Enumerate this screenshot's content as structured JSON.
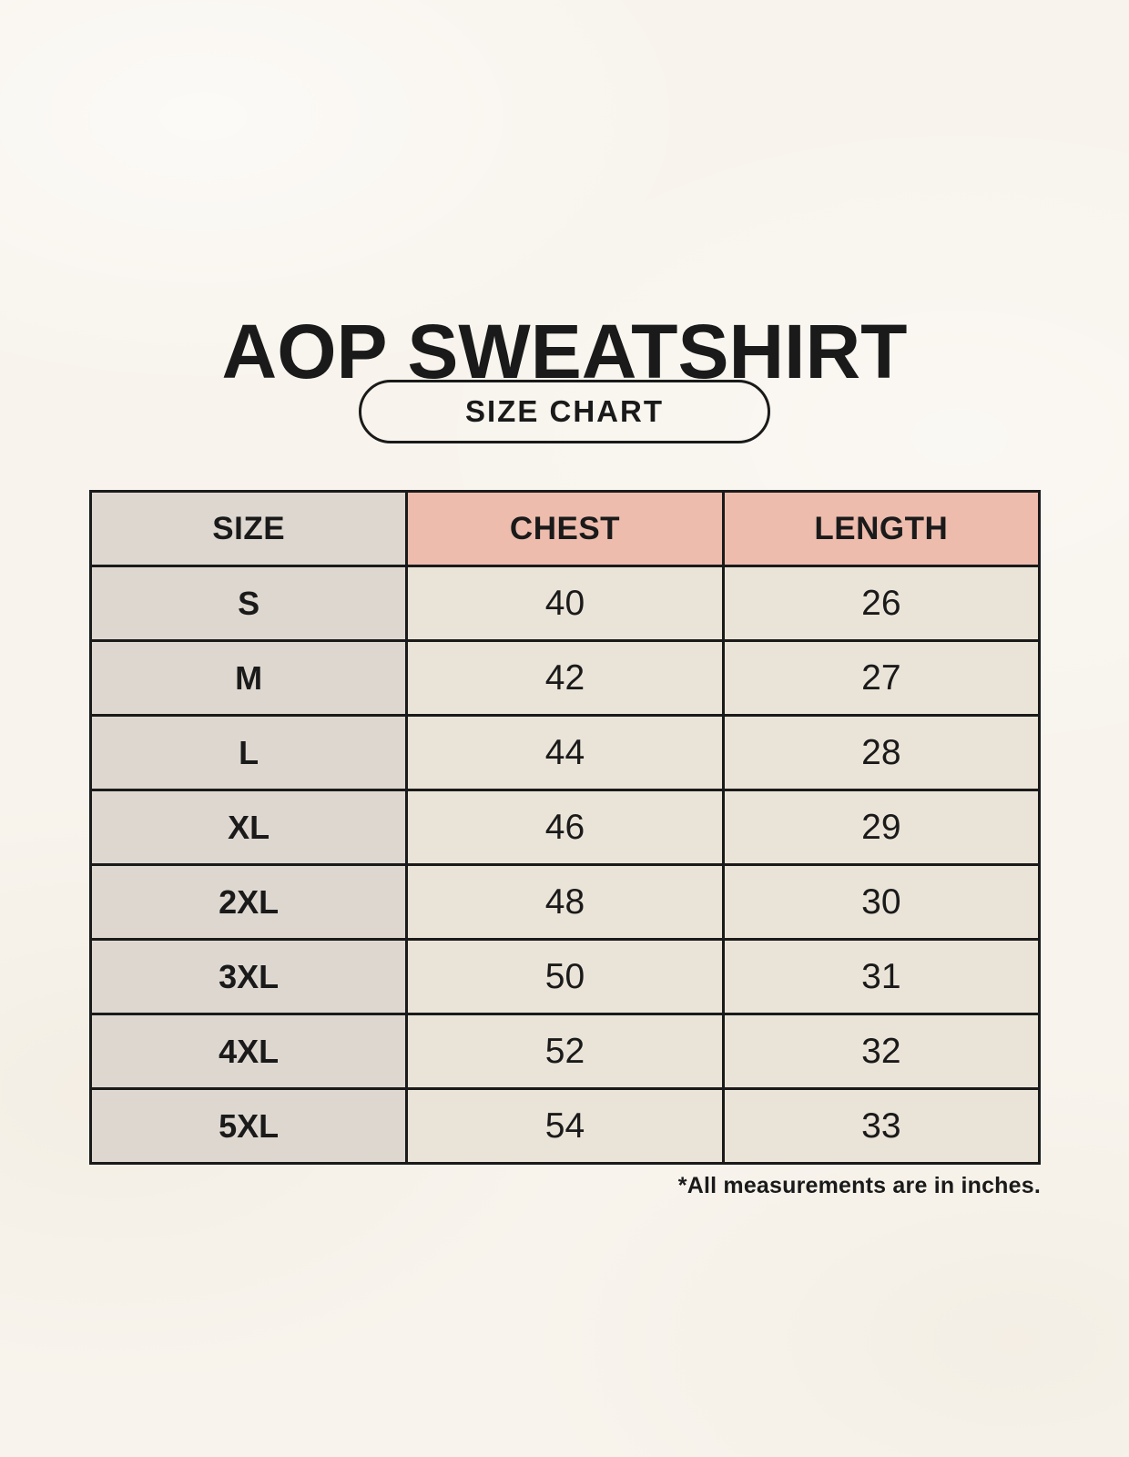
{
  "page": {
    "title": "AOP SWEATSHIRT",
    "badge_label": "SIZE CHART",
    "footnote": "*All measurements are in inches."
  },
  "chart_data": {
    "type": "table",
    "title": "AOP SWEATSHIRT — SIZE CHART",
    "columns": [
      "SIZE",
      "CHEST",
      "LENGTH"
    ],
    "rows": [
      [
        "S",
        "40",
        "26"
      ],
      [
        "M",
        "42",
        "27"
      ],
      [
        "L",
        "44",
        "28"
      ],
      [
        "XL",
        "46",
        "29"
      ],
      [
        "2XL",
        "48",
        "30"
      ],
      [
        "3XL",
        "50",
        "31"
      ],
      [
        "4XL",
        "52",
        "32"
      ],
      [
        "5XL",
        "54",
        "33"
      ]
    ],
    "units": "inches",
    "layout_hints": {
      "size_column_style": "gray",
      "measurement_header_style": "pink",
      "grid": true
    }
  },
  "colors": {
    "bg": "#f8f4ed",
    "ink": "#1a1a1a",
    "gray": "#ded7d0",
    "pink": "#edbcad",
    "cream": "#eae3d7"
  }
}
